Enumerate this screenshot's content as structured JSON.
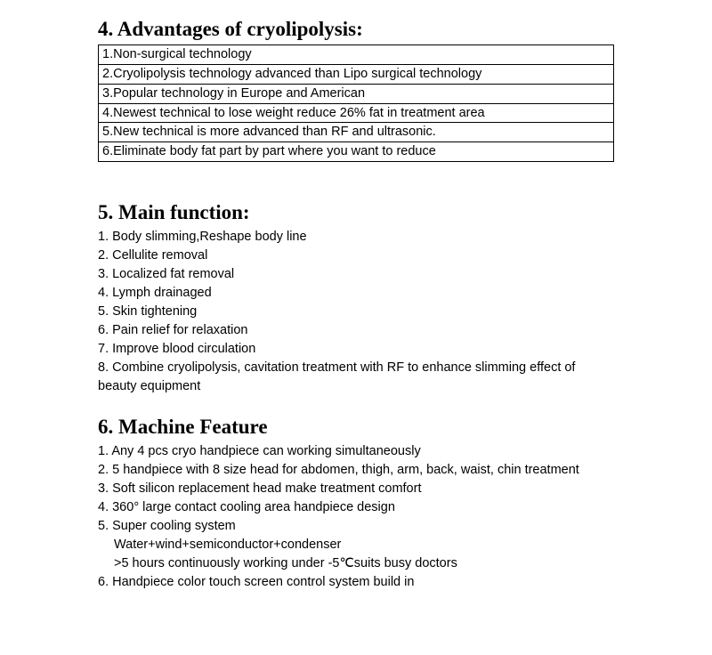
{
  "section4": {
    "heading": "4.  Advantages of cryolipolysis:",
    "rows": [
      "1.Non-surgical technology",
      "2.Cryolipolysis technology advanced than Lipo surgical technology",
      "3.Popular technology in Europe and American",
      "4.Newest technical to lose weight reduce 26% fat in treatment area",
      "5.New technical is more advanced than RF and ultrasonic.",
      "6.Eliminate body fat part by part where you want to reduce"
    ]
  },
  "section5": {
    "heading": "5.  Main function:",
    "items": [
      "1. Body slimming,Reshape body line",
      "2. Cellulite removal",
      "3. Localized fat removal",
      "4. Lymph drainaged",
      "5. Skin tightening",
      "6. Pain relief for relaxation",
      "7. Improve blood circulation",
      "8. Combine cryolipolysis, cavitation treatment with RF to enhance slimming effect of beauty equipment"
    ]
  },
  "section6": {
    "heading": "6. Machine Feature",
    "items": [
      {
        "text": "1. Any 4 pcs cryo handpiece can working simultaneously",
        "indent": false
      },
      {
        "text": "2. 5 handpiece with 8 size head for abdomen, thigh, arm, back, waist, chin treatment",
        "indent": false
      },
      {
        "text": "3. Soft silicon replacement head make treatment comfort",
        "indent": false
      },
      {
        "text": "4. 360° large contact cooling area handpiece design",
        "indent": false
      },
      {
        "text": "5. Super cooling system",
        "indent": false
      },
      {
        "text": "Water+wind+semiconductor+condenser",
        "indent": true
      },
      {
        "text": ">5 hours continuously working under -5℃suits busy doctors",
        "indent": true
      },
      {
        "text": "6.  Handpiece color touch screen control system build in",
        "indent": false
      }
    ]
  },
  "style": {
    "heading_font": "Times New Roman",
    "heading_fontsize_pt": 17,
    "body_font": "Arial",
    "body_fontsize_pt": 11,
    "text_color": "#000000",
    "background_color": "#ffffff",
    "table_border_color": "#000000"
  }
}
